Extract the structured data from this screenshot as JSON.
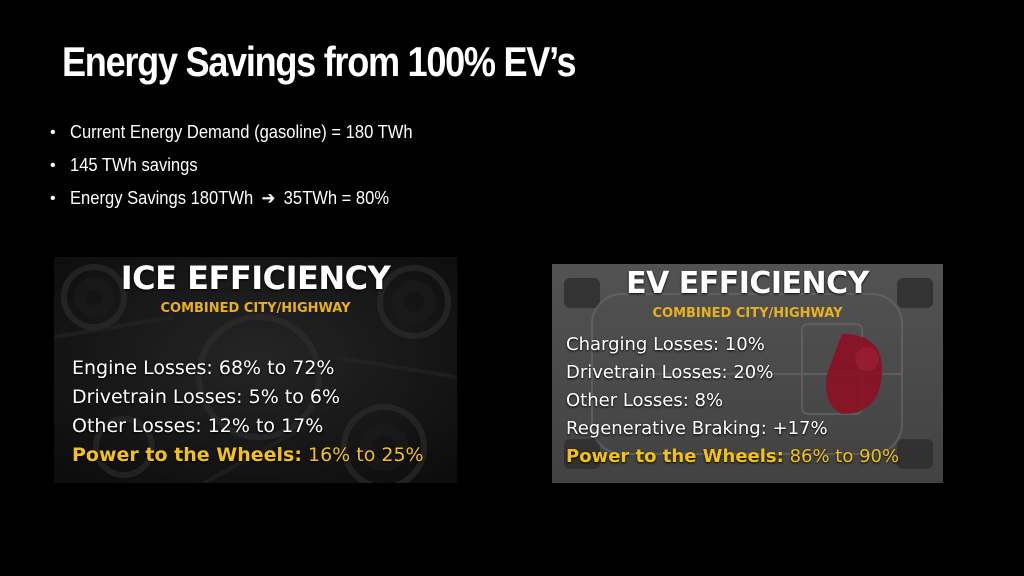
{
  "slide": {
    "title": "Energy Savings from 100% EV’s",
    "bullets": [
      {
        "text": "Current Energy Demand (gasoline) = 180 TWh"
      },
      {
        "text": "145 TWh savings"
      },
      {
        "text_before": "Energy Savings 180TWh",
        "arrow_icon": "right-arrow-icon",
        "arrow_glyph": "➔",
        "text_after": "35TWh = 80%"
      }
    ]
  },
  "ice_panel": {
    "heading": "ICE EFFICIENCY",
    "subheading": "COMBINED CITY/HIGHWAY",
    "lines": [
      "Engine Losses: 68% to 72%",
      "Drivetrain Losses: 5% to 6%",
      "Other Losses: 12% to 17%"
    ],
    "highlight_label": "Power to the Wheels:",
    "highlight_value": " 16% to 25%"
  },
  "ev_panel": {
    "heading": "EV EFFICIENCY",
    "subheading": "COMBINED CITY/HIGHWAY",
    "lines": [
      "Charging Losses: 10%",
      "Drivetrain Losses: 20%",
      "Other Losses: 8%",
      "Regenerative Braking: +17%"
    ],
    "highlight_label": "Power to the Wheels:",
    "highlight_value": " 86% to 90%"
  },
  "colors": {
    "background": "#000000",
    "text": "#ffffff",
    "accent_gold": "#f2c21a",
    "ice_panel_bg": "#202020",
    "ev_panel_bg": "#5f5f5f",
    "ev_motor_red": "#b8102a"
  }
}
